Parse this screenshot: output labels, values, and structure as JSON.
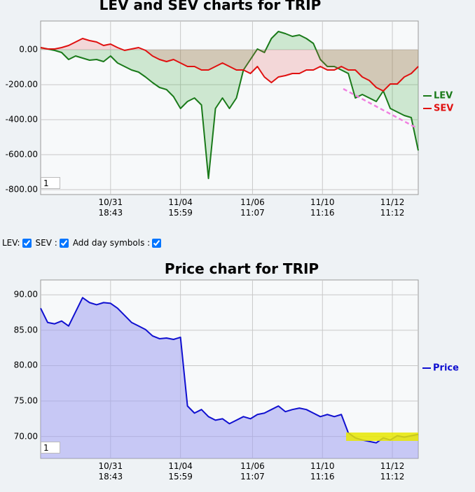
{
  "chart_data": [
    {
      "type": "line",
      "title": "LEV and SEV charts for TRIP",
      "x": [
        0,
        1,
        2,
        3,
        4,
        5,
        6,
        7,
        8,
        9,
        10,
        11,
        12,
        13,
        14,
        15,
        16,
        17,
        18,
        19,
        20,
        21,
        22,
        23,
        24,
        25,
        26,
        27,
        28,
        29,
        30,
        31,
        32,
        33,
        34,
        35,
        36,
        37,
        38,
        39,
        40,
        41,
        42,
        43,
        44,
        45,
        46,
        47,
        48,
        49,
        50,
        51,
        52,
        53,
        54
      ],
      "xlim": [
        0,
        54
      ],
      "xticks": [
        {
          "value": 10,
          "label": "10/31\n18:43"
        },
        {
          "value": 20,
          "label": "11/04\n15:59"
        },
        {
          "value": 30.3,
          "label": "11/06\n11:07"
        },
        {
          "value": 40.3,
          "label": "11/10\n11:16"
        },
        {
          "value": 50.3,
          "label": "11/12\n11:12"
        }
      ],
      "ylim": [
        -828,
        164
      ],
      "yticks": [
        {
          "value": 0,
          "label": "0.00"
        },
        {
          "value": -200,
          "label": "-200.00"
        },
        {
          "value": -400,
          "label": "-400.00"
        },
        {
          "value": -600,
          "label": "-600.00"
        },
        {
          "value": -800,
          "label": "-800.00"
        }
      ],
      "grid": true,
      "legend": "right",
      "series": [
        {
          "name": "LEV",
          "color": "#1a7a1a",
          "area_color": "rgba(60,170,60,0.22)",
          "values": [
            12,
            4,
            -4,
            -16,
            -56,
            -36,
            -48,
            -60,
            -56,
            -68,
            -36,
            -76,
            -96,
            -116,
            -128,
            -156,
            -188,
            -216,
            -228,
            -268,
            -336,
            -296,
            -276,
            -316,
            -736,
            -336,
            -276,
            -336,
            -276,
            -116,
            -56,
            4,
            -16,
            64,
            104,
            92,
            76,
            84,
            64,
            36,
            -56,
            -96,
            -96,
            -116,
            -136,
            -276,
            -256,
            -276,
            -296,
            -236,
            -336,
            -356,
            -376,
            -388,
            -576
          ]
        },
        {
          "name": "SEV",
          "color": "#e01010",
          "area_color": "rgba(230,80,80,0.2)",
          "values": [
            12,
            4,
            4,
            12,
            24,
            44,
            64,
            52,
            44,
            24,
            32,
            12,
            -4,
            4,
            12,
            -4,
            -36,
            -56,
            -68,
            -56,
            -76,
            -96,
            -96,
            -116,
            -116,
            -96,
            -76,
            -96,
            -116,
            -116,
            -136,
            -96,
            -156,
            -188,
            -156,
            -148,
            -136,
            -136,
            -116,
            -116,
            -96,
            -116,
            -116,
            -96,
            -116,
            -116,
            -156,
            -176,
            -216,
            -236,
            -196,
            -196,
            -156,
            -136,
            -96
          ]
        }
      ]
    },
    {
      "type": "area",
      "title": "Price chart for TRIP",
      "x": [
        0,
        1,
        2,
        3,
        4,
        5,
        6,
        7,
        8,
        9,
        10,
        11,
        12,
        13,
        14,
        15,
        16,
        17,
        18,
        19,
        20,
        21,
        22,
        23,
        24,
        25,
        26,
        27,
        28,
        29,
        30,
        31,
        32,
        33,
        34,
        35,
        36,
        37,
        38,
        39,
        40,
        41,
        42,
        43,
        44,
        45,
        46,
        47,
        48,
        49,
        50,
        51,
        52,
        53,
        54
      ],
      "xlim": [
        0,
        54
      ],
      "xticks": [
        {
          "value": 10,
          "label": "10/31\n18:43"
        },
        {
          "value": 20,
          "label": "11/04\n15:59"
        },
        {
          "value": 30.3,
          "label": "11/06\n11:07"
        },
        {
          "value": 40.3,
          "label": "11/10\n11:16"
        },
        {
          "value": 50.3,
          "label": "11/12\n11:12"
        }
      ],
      "ylim": [
        66.9,
        92.1
      ],
      "yticks": [
        {
          "value": 70,
          "label": "70.00"
        },
        {
          "value": 75,
          "label": "75.00"
        },
        {
          "value": 80,
          "label": "80.00"
        },
        {
          "value": 85,
          "label": "85.00"
        },
        {
          "value": 90,
          "label": "90.00"
        }
      ],
      "grid": true,
      "legend": "right",
      "series": [
        {
          "name": "Price",
          "color": "#1010d0",
          "area_color": "rgba(160,160,240,0.55)",
          "values": [
            88.1,
            86.1,
            85.9,
            86.3,
            85.6,
            87.6,
            89.6,
            88.9,
            88.6,
            88.9,
            88.8,
            88.1,
            87.1,
            86.1,
            85.6,
            85.1,
            84.2,
            83.8,
            83.9,
            83.7,
            84.0,
            74.3,
            73.3,
            73.8,
            72.8,
            72.3,
            72.5,
            71.8,
            72.3,
            72.8,
            72.5,
            73.1,
            73.3,
            73.8,
            74.3,
            73.5,
            73.8,
            74.0,
            73.8,
            73.3,
            72.8,
            73.1,
            72.8,
            73.1,
            70.5,
            69.8,
            69.5,
            69.3,
            69.1,
            69.8,
            69.5,
            70.1,
            69.9,
            70.1,
            70.3
          ]
        }
      ]
    }
  ],
  "zoom_inputs": [
    "1",
    "1"
  ],
  "controls": [
    {
      "label": "LEV:",
      "checked": true
    },
    {
      "label": "SEV :",
      "checked": true
    },
    {
      "label": "Add day symbols :",
      "checked": true
    }
  ]
}
